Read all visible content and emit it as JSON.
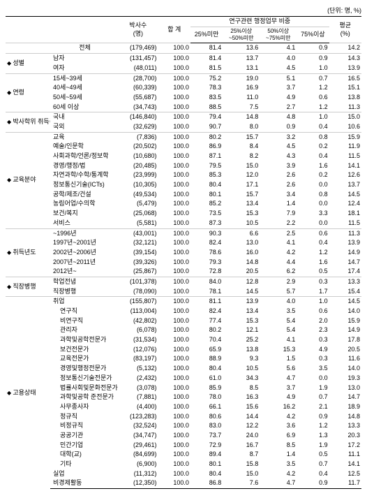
{
  "unit_label": "(단위: 명, %)",
  "header": {
    "col_docs": "박사수\n(명)",
    "col_total": "합 계",
    "col_group": "연구관련 행정업무 비중",
    "col_lt25": "25%미만",
    "col_25_50": "25%이상\n~50%미만",
    "col_50_75": "50%이상\n~75%미만",
    "col_ge75": "75%이상",
    "col_avg": "평균\n(%)"
  },
  "groups": [
    {
      "cat": "",
      "rows": [
        {
          "label": "전체",
          "v": [
            "(179,469)",
            "100.0",
            "81.4",
            "13.6",
            "4.1",
            "0.9",
            "14.2"
          ]
        }
      ]
    },
    {
      "cat": "성별",
      "rows": [
        {
          "label": "남자",
          "v": [
            "(131,457)",
            "100.0",
            "81.4",
            "13.7",
            "4.0",
            "0.9",
            "14.3"
          ]
        },
        {
          "label": "여자",
          "v": [
            "(48,011)",
            "100.0",
            "81.5",
            "13.1",
            "4.5",
            "1.0",
            "13.9"
          ]
        }
      ]
    },
    {
      "cat": "연령",
      "rows": [
        {
          "label": "15세~39세",
          "v": [
            "(28,700)",
            "100.0",
            "75.2",
            "19.0",
            "5.1",
            "0.7",
            "16.5"
          ]
        },
        {
          "label": "40세~49세",
          "v": [
            "(60,339)",
            "100.0",
            "78.3",
            "16.9",
            "3.7",
            "1.2",
            "15.1"
          ]
        },
        {
          "label": "50세~59세",
          "v": [
            "(55,687)",
            "100.0",
            "83.5",
            "11.0",
            "4.9",
            "0.6",
            "13.8"
          ]
        },
        {
          "label": "60세 이상",
          "v": [
            "(34,743)",
            "100.0",
            "88.5",
            "7.5",
            "2.7",
            "1.2",
            "11.3"
          ]
        }
      ]
    },
    {
      "cat": "박사학위 취득국가",
      "rows": [
        {
          "label": "국내",
          "v": [
            "(146,840)",
            "100.0",
            "79.4",
            "14.8",
            "4.8",
            "1.0",
            "15.0"
          ]
        },
        {
          "label": "국외",
          "v": [
            "(32,629)",
            "100.0",
            "90.7",
            "8.0",
            "0.9",
            "0.4",
            "10.6"
          ]
        }
      ]
    },
    {
      "cat": "교육분야",
      "rows": [
        {
          "label": "교육",
          "v": [
            "(7,836)",
            "100.0",
            "80.2",
            "15.7",
            "3.2",
            "0.8",
            "15.9"
          ]
        },
        {
          "label": "예술/인문학",
          "v": [
            "(20,502)",
            "100.0",
            "86.9",
            "8.4",
            "4.5",
            "0.2",
            "11.9"
          ]
        },
        {
          "label": "사회과학/언론/정보학",
          "v": [
            "(10,680)",
            "100.0",
            "87.1",
            "8.2",
            "4.3",
            "0.4",
            "11.5"
          ]
        },
        {
          "label": "경영/행정/법",
          "v": [
            "(20,485)",
            "100.0",
            "79.5",
            "15.0",
            "3.9",
            "1.6",
            "14.1"
          ]
        },
        {
          "label": "자연과학/수학/통계학",
          "v": [
            "(23,999)",
            "100.0",
            "85.3",
            "12.0",
            "2.6",
            "0.2",
            "12.6"
          ]
        },
        {
          "label": "정보통신기술(ICTs)",
          "v": [
            "(10,305)",
            "100.0",
            "80.4",
            "17.1",
            "2.6",
            "0.0",
            "13.7"
          ]
        },
        {
          "label": "공학/제조/건설",
          "v": [
            "(49,534)",
            "100.0",
            "80.1",
            "15.7",
            "3.4",
            "0.8",
            "14.5"
          ]
        },
        {
          "label": "농림어업/수의학",
          "v": [
            "(5,479)",
            "100.0",
            "85.2",
            "13.4",
            "1.4",
            "0.0",
            "12.4"
          ]
        },
        {
          "label": "보건/복지",
          "v": [
            "(25,068)",
            "100.0",
            "73.5",
            "15.3",
            "7.9",
            "3.3",
            "18.1"
          ]
        },
        {
          "label": "서비스",
          "v": [
            "(5,581)",
            "100.0",
            "87.3",
            "10.5",
            "2.2",
            "0.0",
            "11.5"
          ]
        }
      ]
    },
    {
      "cat": "취득년도",
      "rows": [
        {
          "label": "~1996년",
          "v": [
            "(43,001)",
            "100.0",
            "90.3",
            "6.6",
            "2.5",
            "0.6",
            "11.3"
          ]
        },
        {
          "label": "1997년~2001년",
          "v": [
            "(32,121)",
            "100.0",
            "82.4",
            "13.0",
            "4.1",
            "0.4",
            "13.9"
          ]
        },
        {
          "label": "2002년~2006년",
          "v": [
            "(39,154)",
            "100.0",
            "78.6",
            "16.0",
            "4.2",
            "1.2",
            "14.9"
          ]
        },
        {
          "label": "2007년~2011년",
          "v": [
            "(39,326)",
            "100.0",
            "79.3",
            "14.8",
            "4.4",
            "1.6",
            "14.7"
          ]
        },
        {
          "label": "2012년~",
          "v": [
            "(25,867)",
            "100.0",
            "72.8",
            "20.5",
            "6.2",
            "0.5",
            "17.4"
          ]
        }
      ]
    },
    {
      "cat": "직장병행",
      "rows": [
        {
          "label": "학업전념",
          "v": [
            "(101,378)",
            "100.0",
            "84.0",
            "12.8",
            "2.9",
            "0.3",
            "13.3"
          ]
        },
        {
          "label": "직장병행",
          "v": [
            "(78,090)",
            "100.0",
            "78.1",
            "14.5",
            "5.7",
            "1.7",
            "15.4"
          ]
        }
      ]
    },
    {
      "cat": "고용상태",
      "rows": [
        {
          "label": "취업",
          "v": [
            "(155,807)",
            "100.0",
            "81.1",
            "13.9",
            "4.0",
            "1.0",
            "14.5"
          ]
        },
        {
          "label": "연구직",
          "indent": true,
          "v": [
            "(113,004)",
            "100.0",
            "82.4",
            "13.4",
            "3.5",
            "0.6",
            "14.0"
          ]
        },
        {
          "label": "비연구직",
          "indent": true,
          "v": [
            "(42,802)",
            "100.0",
            "77.4",
            "15.3",
            "5.4",
            "2.0",
            "15.9"
          ]
        },
        {
          "label": "관리자",
          "indent": true,
          "v": [
            "(6,078)",
            "100.0",
            "80.2",
            "12.1",
            "5.4",
            "2.3",
            "14.9"
          ]
        },
        {
          "label": "과학및공학전문가",
          "indent": true,
          "v": [
            "(31,534)",
            "100.0",
            "70.4",
            "25.2",
            "4.1",
            "0.3",
            "17.8"
          ]
        },
        {
          "label": "보건전문가",
          "indent": true,
          "v": [
            "(12,076)",
            "100.0",
            "65.9",
            "13.8",
            "15.3",
            "4.9",
            "20.5"
          ]
        },
        {
          "label": "교육전문가",
          "indent": true,
          "v": [
            "(83,197)",
            "100.0",
            "88.9",
            "9.3",
            "1.5",
            "0.3",
            "11.6"
          ]
        },
        {
          "label": "경영및행정전문가",
          "indent": true,
          "v": [
            "(5,132)",
            "100.0",
            "80.4",
            "10.5",
            "5.6",
            "3.5",
            "14.0"
          ]
        },
        {
          "label": "정보통신기술전문가",
          "indent": true,
          "v": [
            "(2,432)",
            "100.0",
            "61.0",
            "34.3",
            "4.7",
            "0.0",
            "19.3"
          ]
        },
        {
          "label": "법률사회및문화전문가",
          "indent": true,
          "v": [
            "(3,078)",
            "100.0",
            "85.9",
            "8.5",
            "3.7",
            "1.9",
            "13.0"
          ]
        },
        {
          "label": "과학및공학 준전문가",
          "indent": true,
          "v": [
            "(7,881)",
            "100.0",
            "78.0",
            "16.3",
            "4.9",
            "0.7",
            "14.7"
          ]
        },
        {
          "label": "사무종사자",
          "indent": true,
          "v": [
            "(4,400)",
            "100.0",
            "66.1",
            "15.6",
            "16.2",
            "2.1",
            "18.9"
          ]
        },
        {
          "label": "정규직",
          "indent": true,
          "v": [
            "(123,283)",
            "100.0",
            "80.6",
            "14.4",
            "4.2",
            "0.9",
            "14.8"
          ]
        },
        {
          "label": "비정규직",
          "indent": true,
          "v": [
            "(32,524)",
            "100.0",
            "83.0",
            "12.2",
            "3.6",
            "1.2",
            "13.3"
          ]
        },
        {
          "label": "공공기관",
          "indent": true,
          "v": [
            "(34,747)",
            "100.0",
            "73.7",
            "24.0",
            "6.9",
            "1.3",
            "20.3"
          ]
        },
        {
          "label": "민간기업",
          "indent": true,
          "v": [
            "(29,461)",
            "100.0",
            "72.9",
            "16.7",
            "8.5",
            "1.9",
            "17.2"
          ]
        },
        {
          "label": "대학(교)",
          "indent": true,
          "v": [
            "(84,699)",
            "100.0",
            "89.4",
            "8.7",
            "1.4",
            "0.5",
            "11.1"
          ]
        },
        {
          "label": "기타",
          "indent": true,
          "v": [
            "(6,900)",
            "100.0",
            "80.1",
            "15.8",
            "3.5",
            "0.7",
            "14.1"
          ]
        },
        {
          "label": "실업",
          "v": [
            "(11,312)",
            "100.0",
            "80.4",
            "15.0",
            "4.2",
            "0.4",
            "12.5"
          ]
        },
        {
          "label": "비경제활동",
          "v": [
            "(12,350)",
            "100.0",
            "86.8",
            "7.6",
            "4.7",
            "0.9",
            "11.7"
          ]
        }
      ]
    }
  ]
}
